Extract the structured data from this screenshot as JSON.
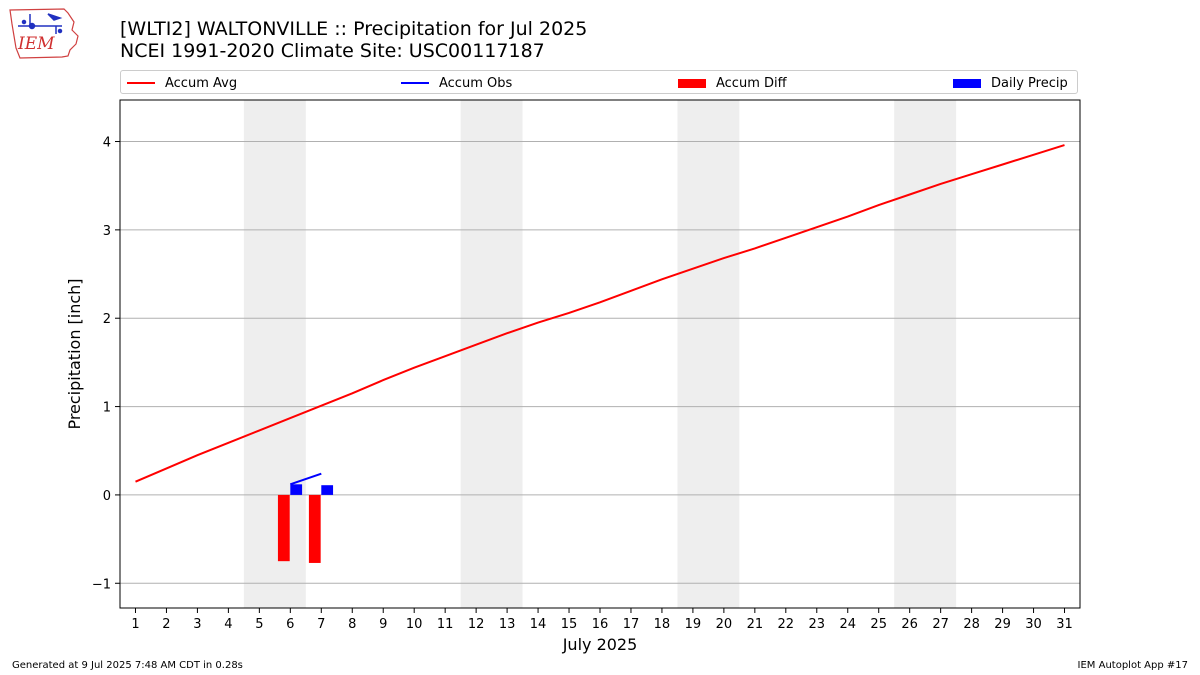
{
  "header": {
    "logo_text": "IEM",
    "title_line1": "[WLTI2] WALTONVILLE :: Precipitation for Jul 2025",
    "title_line2": "NCEI 1991-2020 Climate Site: USC00117187"
  },
  "footer": {
    "left": "Generated at 9 Jul 2025 7:48 AM CDT in 0.28s",
    "right": "IEM Autoplot App #17"
  },
  "chart_data": {
    "type": "line",
    "xlabel": "July 2025",
    "ylabel": "Precipitation [inch]",
    "xlim": [
      0.5,
      31.5
    ],
    "ylim": [
      -1.28,
      4.47
    ],
    "yticks": [
      -1,
      0,
      1,
      2,
      3,
      4
    ],
    "ytick_labels": [
      "−1",
      "0",
      "1",
      "2",
      "3",
      "4"
    ],
    "x_categories": [
      "1",
      "2",
      "3",
      "4",
      "5",
      "6",
      "7",
      "8",
      "9",
      "10",
      "11",
      "12",
      "13",
      "14",
      "15",
      "16",
      "17",
      "18",
      "19",
      "20",
      "21",
      "22",
      "23",
      "24",
      "25",
      "26",
      "27",
      "28",
      "29",
      "30",
      "31"
    ],
    "grid": "horizontal",
    "legend_placement": "top",
    "weekend_shading": [
      [
        5,
        6
      ],
      [
        12,
        13
      ],
      [
        19,
        20
      ],
      [
        26,
        27
      ]
    ],
    "colors": {
      "accum_avg": "#ff0000",
      "accum_obs": "#0000ff",
      "accum_diff": "#ff0000",
      "daily_precip": "#0000ff",
      "weekend": "#eeeeee",
      "grid": "#b0b0b0"
    },
    "series": [
      {
        "name": "Accum Avg",
        "kind": "line",
        "x": [
          1,
          2,
          3,
          4,
          5,
          6,
          7,
          8,
          9,
          10,
          11,
          12,
          13,
          14,
          15,
          16,
          17,
          18,
          19,
          20,
          21,
          22,
          23,
          24,
          25,
          26,
          27,
          28,
          29,
          30,
          31
        ],
        "values": [
          0.15,
          0.3,
          0.45,
          0.59,
          0.73,
          0.87,
          1.01,
          1.15,
          1.3,
          1.44,
          1.57,
          1.7,
          1.83,
          1.95,
          2.06,
          2.18,
          2.31,
          2.44,
          2.56,
          2.68,
          2.79,
          2.91,
          3.03,
          3.15,
          3.28,
          3.4,
          3.52,
          3.63,
          3.74,
          3.85,
          3.96
        ]
      },
      {
        "name": "Accum Obs",
        "kind": "line",
        "x": [
          6,
          7
        ],
        "values": [
          0.12,
          0.24
        ]
      },
      {
        "name": "Accum Diff",
        "kind": "bar",
        "x": [
          6,
          7
        ],
        "values": [
          -0.75,
          -0.77
        ]
      },
      {
        "name": "Daily Precip",
        "kind": "bar",
        "x": [
          6,
          7
        ],
        "values": [
          0.12,
          0.11
        ]
      }
    ]
  }
}
